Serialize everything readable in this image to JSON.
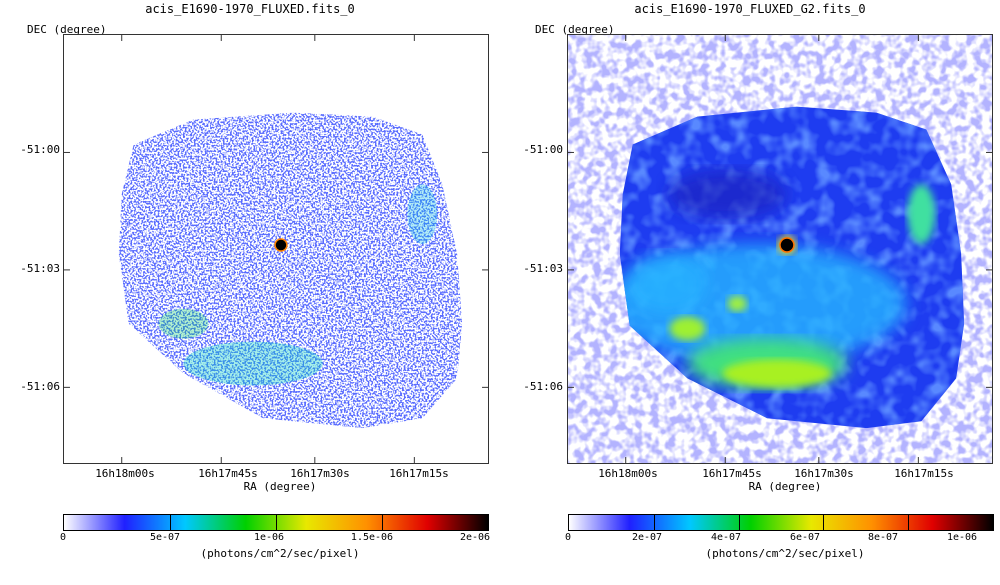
{
  "panels": [
    {
      "title": "acis_E1690-1970_FLUXED.fits_0",
      "ylabel": "DEC (degree)",
      "xlabel": "RA (degree)",
      "yticks": [
        "-51:00",
        "-51:03",
        "-51:06"
      ],
      "xticks": [
        "16h18m00s",
        "16h17m45s",
        "16h17m30s",
        "16h17m15s"
      ],
      "colorbar_ticks": [
        "0",
        "5e-07",
        "1e-06",
        "1.5e-06",
        "2e-06"
      ],
      "colorbar_label": "(photons/cm^2/sec/pixel)"
    },
    {
      "title": "acis_E1690-1970_FLUXED_G2.fits_0",
      "ylabel": "DEC (degree)",
      "xlabel": "RA (degree)",
      "yticks": [
        "-51:00",
        "-51:03",
        "-51:06"
      ],
      "xticks": [
        "16h18m00s",
        "16h17m45s",
        "16h17m30s",
        "16h17m15s"
      ],
      "colorbar_ticks": [
        "0",
        "2e-07",
        "4e-07",
        "6e-07",
        "8e-07",
        "1e-06"
      ],
      "colorbar_label": "(photons/cm^2/sec/pixel)"
    }
  ],
  "colormap": [
    "#ffffff",
    "#2020ff",
    "#00c8ff",
    "#00d000",
    "#e8e800",
    "#ff9000",
    "#e00000",
    "#000000"
  ]
}
